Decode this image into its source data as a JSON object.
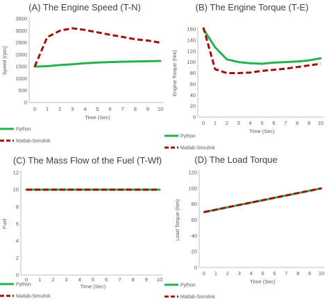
{
  "colors": {
    "python": "#23b14d",
    "simulink": "#a50d0d",
    "axis": "#bfbfbf"
  },
  "legend": {
    "python": "Python",
    "simulink": "Matlab-Simulink"
  },
  "chart_data": [
    {
      "id": "A",
      "type": "line",
      "title": "(A) The Engine Speed (T-N)",
      "xlabel": "Time (Sec)",
      "ylabel": "Speed (rpm)",
      "x": [
        0,
        1,
        2,
        3,
        4,
        5,
        6,
        7,
        8,
        9,
        10
      ],
      "xlim": [
        0,
        10
      ],
      "ylim": [
        0,
        3500
      ],
      "yticks": [
        0,
        500,
        1000,
        1500,
        2000,
        2500,
        3000,
        3500
      ],
      "legend_placement": "bottom-left",
      "series": [
        {
          "name": "Python",
          "values": [
            1500,
            1520,
            1565,
            1600,
            1640,
            1670,
            1690,
            1705,
            1715,
            1725,
            1735
          ]
        },
        {
          "name": "Matlab-Simulink",
          "values": [
            1500,
            2730,
            3000,
            3100,
            3030,
            2930,
            2830,
            2740,
            2640,
            2590,
            2500
          ]
        }
      ]
    },
    {
      "id": "B",
      "type": "line",
      "title": "(B) The Engine Torque (T-E)",
      "xlabel": "Time (Sec)",
      "ylabel": "Engine Torque (Nm)",
      "x": [
        0,
        1,
        2,
        3,
        4,
        5,
        6,
        7,
        8,
        9,
        10
      ],
      "xlim": [
        0,
        10
      ],
      "ylim": [
        0,
        160
      ],
      "yticks": [
        0,
        20,
        40,
        60,
        80,
        100,
        120,
        140,
        160
      ],
      "legend_placement": "bottom-left",
      "series": [
        {
          "name": "Python",
          "values": [
            160,
            127,
            105,
            100,
            98,
            97,
            99,
            100,
            101,
            103,
            107
          ]
        },
        {
          "name": "Matlab-Simulink",
          "values": [
            163,
            87,
            80,
            80,
            81,
            84,
            86,
            88,
            91,
            94,
            97
          ]
        }
      ]
    },
    {
      "id": "C",
      "type": "line",
      "title": "(C) The Mass Flow of the Fuel (T-Wf)",
      "xlabel": "Time (Sec)",
      "ylabel": "Fuel",
      "x": [
        0,
        1,
        2,
        3,
        4,
        5,
        6,
        7,
        8,
        9,
        10
      ],
      "xlim": [
        0,
        10
      ],
      "ylim": [
        0,
        12
      ],
      "yticks": [
        0,
        2,
        4,
        6,
        8,
        10,
        12
      ],
      "legend_placement": "bottom-left",
      "series": [
        {
          "name": "Python",
          "values": [
            10,
            10,
            10,
            10,
            10,
            10,
            10,
            10,
            10,
            10,
            10
          ]
        },
        {
          "name": "Matlab-Simulink",
          "values": [
            10,
            10,
            10,
            10,
            10,
            10,
            10,
            10,
            10,
            10,
            10
          ]
        }
      ]
    },
    {
      "id": "D",
      "type": "line",
      "title": "(D) The Load Torque",
      "xlabel": "Time (Sec)",
      "ylabel": "Load Torque (Nm)",
      "x": [
        0,
        1,
        2,
        3,
        4,
        5,
        6,
        7,
        8,
        9,
        10
      ],
      "xlim": [
        0,
        10
      ],
      "ylim": [
        0,
        120
      ],
      "yticks": [
        0,
        20,
        40,
        60,
        80,
        100,
        120
      ],
      "legend_placement": "bottom-left",
      "series": [
        {
          "name": "Python",
          "values": [
            70,
            73,
            76,
            79,
            82,
            85,
            88,
            91,
            94,
            97,
            100
          ]
        },
        {
          "name": "Matlab-Simulink",
          "values": [
            70,
            73,
            76,
            79,
            82,
            85,
            88,
            91,
            94,
            97,
            100
          ]
        }
      ]
    }
  ]
}
